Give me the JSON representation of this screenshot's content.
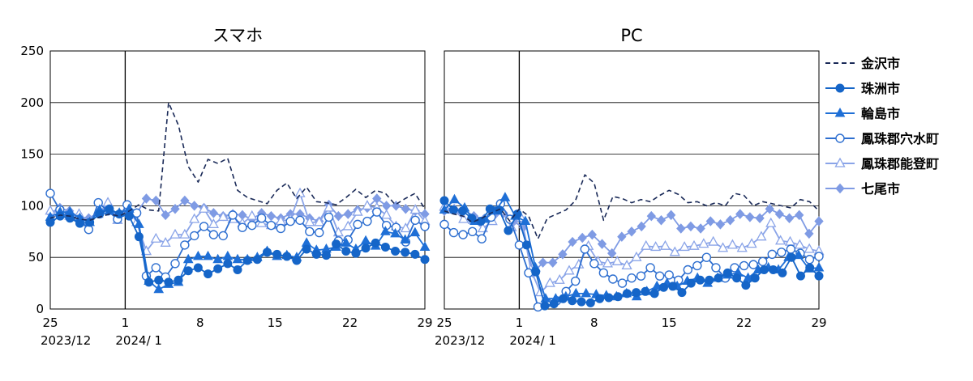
{
  "chart_data": [
    {
      "type": "line",
      "title": "スマホ",
      "ylim": [
        0,
        250
      ],
      "yticks": [
        0,
        50,
        100,
        150,
        200,
        250
      ],
      "xlim": [
        0,
        35
      ],
      "xticks": [
        {
          "x": 0,
          "label": "25"
        },
        {
          "x": 7,
          "label": "1"
        },
        {
          "x": 14,
          "label": "8"
        },
        {
          "x": 21,
          "label": "15"
        },
        {
          "x": 28,
          "label": "22"
        },
        {
          "x": 35,
          "label": "29"
        }
      ],
      "month_labels": [
        {
          "x": 0,
          "label": "2023/12"
        },
        {
          "x": 7,
          "label": "2024/ 1"
        }
      ],
      "event_line_x": 7,
      "grid": true,
      "series": [
        {
          "name": "金沢市",
          "values": [
            88,
            91,
            90,
            87,
            86,
            89,
            92,
            90,
            95,
            101,
            96,
            95,
            200,
            178,
            138,
            123,
            145,
            141,
            146,
            115,
            108,
            105,
            102,
            115,
            122,
            107,
            118,
            104,
            103,
            101,
            108,
            116,
            108,
            115,
            112,
            101,
            107,
            112,
            97
          ]
        },
        {
          "name": "珠洲市",
          "values": [
            84,
            90,
            88,
            83,
            84,
            92,
            97,
            92,
            90,
            70,
            26,
            28,
            26,
            28,
            37,
            40,
            34,
            39,
            44,
            38,
            47,
            48,
            55,
            53,
            51,
            47,
            58,
            53,
            52,
            63,
            56,
            54,
            59,
            64,
            60,
            56,
            55,
            53,
            48
          ]
        },
        {
          "name": "輪島市",
          "values": [
            89,
            94,
            94,
            88,
            84,
            96,
            95,
            93,
            97,
            82,
            27,
            19,
            24,
            26,
            48,
            51,
            51,
            48,
            51,
            48,
            48,
            50,
            56,
            51,
            52,
            50,
            64,
            57,
            58,
            60,
            64,
            58,
            66,
            61,
            75,
            73,
            67,
            74,
            60
          ]
        },
        {
          "name": "鳳珠郡穴水町",
          "values": [
            112,
            96,
            91,
            87,
            77,
            103,
            95,
            87,
            101,
            93,
            32,
            40,
            31,
            44,
            62,
            71,
            80,
            72,
            71,
            91,
            79,
            81,
            88,
            81,
            78,
            85,
            86,
            75,
            74,
            89,
            66,
            67,
            82,
            85,
            94,
            81,
            79,
            65,
            86,
            80
          ]
        },
        {
          "name": "鳳珠郡能登町",
          "values": [
            95,
            93,
            90,
            92,
            84,
            92,
            103,
            86,
            98,
            84,
            56,
            68,
            64,
            72,
            72,
            87,
            97,
            82,
            89,
            87,
            83,
            90,
            83,
            81,
            85,
            87,
            112,
            84,
            84,
            98,
            74,
            80,
            94,
            100,
            98,
            91,
            80,
            78,
            96,
            85
          ]
        },
        {
          "name": "七尾市",
          "values": [
            93,
            98,
            95,
            89,
            88,
            93,
            97,
            91,
            95,
            93,
            107,
            105,
            91,
            97,
            105,
            100,
            98,
            93,
            90,
            92,
            91,
            87,
            93,
            90,
            88,
            92,
            92,
            88,
            85,
            101,
            90,
            92,
            96,
            98,
            107,
            100,
            100,
            97,
            95,
            92
          ]
        }
      ]
    },
    {
      "type": "line",
      "title": "PC",
      "ylim": [
        0,
        250
      ],
      "yticks": [
        0,
        50,
        100,
        150,
        200,
        250
      ],
      "xlim": [
        0,
        35
      ],
      "xticks": [
        {
          "x": 0,
          "label": "25"
        },
        {
          "x": 7,
          "label": "1"
        },
        {
          "x": 14,
          "label": "8"
        },
        {
          "x": 21,
          "label": "15"
        },
        {
          "x": 28,
          "label": "22"
        },
        {
          "x": 35,
          "label": "29"
        }
      ],
      "month_labels": [
        {
          "x": 0,
          "label": "2023/12"
        },
        {
          "x": 7,
          "label": "2024/ 1"
        }
      ],
      "event_line_x": 7,
      "grid": true,
      "series": [
        {
          "name": "金沢市",
          "values": [
            95,
            92,
            90,
            84,
            88,
            93,
            97,
            85,
            97,
            90,
            68,
            88,
            92,
            96,
            105,
            130,
            122,
            86,
            109,
            107,
            103,
            106,
            104,
            110,
            115,
            111,
            103,
            104,
            100,
            103,
            100,
            112,
            110,
            100,
            104,
            102,
            100,
            98,
            106,
            104,
            95
          ]
        },
        {
          "name": "珠洲市",
          "values": [
            105,
            96,
            95,
            88,
            85,
            97,
            96,
            76,
            92,
            62,
            36,
            3,
            5,
            10,
            8,
            7,
            6,
            10,
            11,
            12,
            15,
            16,
            17,
            15,
            21,
            22,
            16,
            25,
            28,
            28,
            30,
            35,
            30,
            23,
            30,
            38,
            38,
            35,
            50,
            32,
            40,
            32
          ]
        },
        {
          "name": "輪島市",
          "values": [
            96,
            106,
            98,
            85,
            87,
            95,
            108,
            90,
            85,
            40,
            10,
            10,
            12,
            15,
            15,
            14,
            13,
            12,
            15,
            12,
            17,
            22,
            25,
            22,
            27,
            30,
            25,
            30,
            33,
            35,
            30,
            38,
            40,
            38,
            50,
            52,
            39,
            40
          ]
        },
        {
          "name": "鳳珠郡穴水町",
          "values": [
            82,
            74,
            72,
            75,
            68,
            89,
            102,
            87,
            62,
            35,
            2,
            6,
            8,
            17,
            27,
            58,
            44,
            35,
            29,
            25,
            30,
            32,
            40,
            32,
            33,
            28,
            38,
            42,
            50,
            40,
            30,
            40,
            42,
            43,
            46,
            53,
            55,
            58,
            54,
            48,
            51
          ]
        },
        {
          "name": "鳳珠郡能登町",
          "values": [
            99,
            96,
            87,
            86,
            78,
            85,
            95,
            79,
            88,
            38,
            16,
            25,
            28,
            37,
            43,
            61,
            46,
            44,
            46,
            42,
            50,
            61,
            60,
            61,
            55,
            60,
            61,
            63,
            65,
            59,
            62,
            59,
            63,
            70,
            83,
            66,
            65,
            62,
            58,
            56
          ]
        },
        {
          "name": "七尾市",
          "values": [
            95,
            97,
            96,
            90,
            87,
            91,
            93,
            85,
            79,
            35,
            45,
            45,
            53,
            65,
            69,
            72,
            63,
            54,
            70,
            75,
            80,
            90,
            86,
            91,
            78,
            80,
            78,
            85,
            82,
            86,
            92,
            89,
            88,
            97,
            92,
            88,
            91,
            73,
            85
          ]
        }
      ]
    }
  ],
  "legend": [
    {
      "name": "金沢市",
      "color": "#1a2a58",
      "marker": "none",
      "dash": true
    },
    {
      "name": "珠洲市",
      "color": "#1565c8",
      "marker": "circle-filled",
      "dash": false
    },
    {
      "name": "輪島市",
      "color": "#1e6fd6",
      "marker": "triangle-filled",
      "dash": false
    },
    {
      "name": "鳳珠郡穴水町",
      "color": "#2e6fd0",
      "marker": "circle-open",
      "dash": false
    },
    {
      "name": "鳳珠郡能登町",
      "color": "#8aa4e8",
      "marker": "triangle-open",
      "dash": false
    },
    {
      "name": "七尾市",
      "color": "#7f9be4",
      "marker": "diamond-filled",
      "dash": false
    }
  ]
}
